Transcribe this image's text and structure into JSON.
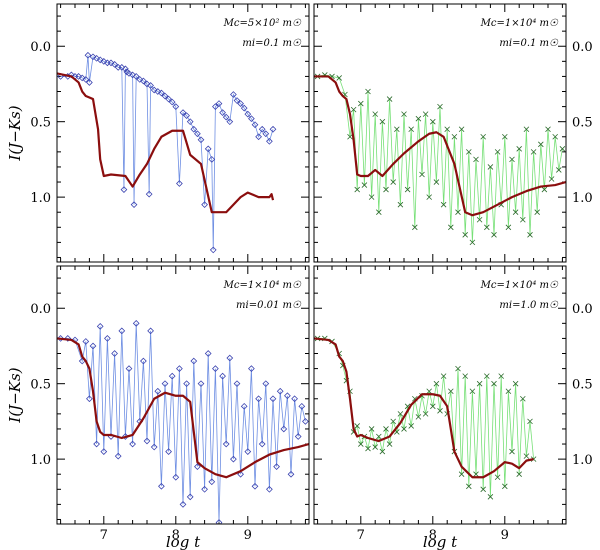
{
  "colors": {
    "model": "#8b0e0e",
    "blue_line": "#6f8fe3",
    "blue_marker": "#3a43b0",
    "green_line": "#77e077",
    "green_marker": "#2a6a2a"
  },
  "chart_data": [
    {
      "type": "line",
      "panel": "top-left",
      "marker": "diamond",
      "annotation": {
        "line1": "Mc=5×10² m☉",
        "line2": "mi=0.1 m☉"
      },
      "xlabel": "",
      "ylabel": "I(J−Ks)",
      "xlim": [
        6.35,
        9.85
      ],
      "ylim": [
        1.43,
        -0.28
      ],
      "xticks": [
        "7",
        "8",
        "9"
      ],
      "yticks": [
        "0.0",
        "0.5",
        "1.0"
      ],
      "series": [
        {
          "name": "model",
          "x": [
            6.35,
            6.55,
            6.65,
            6.7,
            6.75,
            6.8,
            6.85,
            6.92,
            6.95,
            7.0,
            7.1,
            7.3,
            7.4,
            7.5,
            7.6,
            7.7,
            7.8,
            7.95,
            8.05,
            8.1,
            8.2,
            8.35,
            8.5,
            8.7,
            8.9,
            9.0,
            9.15,
            9.3,
            9.33,
            9.35
          ],
          "y": [
            0.18,
            0.2,
            0.24,
            0.3,
            0.33,
            0.34,
            0.35,
            0.55,
            0.75,
            0.86,
            0.85,
            0.86,
            0.93,
            0.85,
            0.78,
            0.68,
            0.6,
            0.56,
            0.56,
            0.56,
            0.72,
            0.78,
            1.1,
            1.1,
            1.0,
            0.97,
            1.0,
            1.0,
            0.98,
            1.02
          ]
        },
        {
          "name": "simulation",
          "x": [
            6.4,
            6.5,
            6.55,
            6.6,
            6.65,
            6.7,
            6.75,
            6.78,
            6.8,
            6.85,
            6.9,
            6.95,
            7.0,
            7.05,
            7.1,
            7.15,
            7.2,
            7.25,
            7.28,
            7.3,
            7.32,
            7.35,
            7.4,
            7.42,
            7.45,
            7.5,
            7.55,
            7.6,
            7.63,
            7.65,
            7.7,
            7.75,
            7.8,
            7.85,
            7.9,
            7.95,
            8.0,
            8.05,
            8.1,
            8.15,
            8.2,
            8.25,
            8.3,
            8.35,
            8.4,
            8.45,
            8.5,
            8.52,
            8.55,
            8.6,
            8.65,
            8.7,
            8.75,
            8.8,
            8.85,
            8.9,
            8.95,
            9.0,
            9.05,
            9.1,
            9.15,
            9.2,
            9.25,
            9.3,
            9.35
          ],
          "y": [
            0.2,
            0.2,
            0.19,
            0.2,
            0.2,
            0.21,
            0.22,
            0.06,
            0.24,
            0.07,
            0.08,
            0.09,
            0.1,
            0.11,
            0.11,
            0.12,
            0.14,
            0.14,
            0.95,
            0.15,
            0.17,
            0.18,
            0.19,
            1.05,
            0.2,
            0.22,
            0.23,
            0.25,
            0.98,
            0.26,
            0.29,
            0.3,
            0.31,
            0.33,
            0.35,
            0.37,
            0.4,
            0.91,
            0.44,
            0.46,
            0.5,
            0.55,
            0.58,
            0.62,
            1.05,
            0.68,
            0.75,
            1.35,
            0.4,
            0.38,
            0.44,
            0.47,
            0.5,
            0.32,
            0.36,
            0.38,
            0.41,
            0.45,
            0.48,
            0.52,
            0.6,
            0.55,
            0.58,
            0.63,
            0.55
          ]
        }
      ]
    },
    {
      "type": "line",
      "panel": "top-right",
      "marker": "cross",
      "annotation": {
        "line1": "Mc=1×10⁴ m☉",
        "line2": "mi=0.1 m☉"
      },
      "xlabel": "",
      "ylabel": "",
      "xlim": [
        6.35,
        9.85
      ],
      "ylim": [
        1.43,
        -0.28
      ],
      "xticks": [
        "7",
        "8",
        "9"
      ],
      "yticks": [
        "0.0",
        "0.5",
        "1.0"
      ],
      "series": [
        {
          "name": "model",
          "x": [
            6.35,
            6.55,
            6.65,
            6.7,
            6.75,
            6.8,
            6.85,
            6.9,
            6.95,
            7.0,
            7.1,
            7.2,
            7.3,
            7.45,
            7.6,
            7.8,
            7.95,
            8.05,
            8.15,
            8.3,
            8.45,
            8.55,
            8.7,
            8.9,
            9.1,
            9.3,
            9.5,
            9.7,
            9.85
          ],
          "y": [
            0.2,
            0.2,
            0.24,
            0.3,
            0.33,
            0.35,
            0.45,
            0.62,
            0.85,
            0.86,
            0.86,
            0.82,
            0.86,
            0.78,
            0.71,
            0.63,
            0.58,
            0.57,
            0.6,
            0.78,
            1.1,
            1.12,
            1.1,
            1.05,
            1.0,
            0.96,
            0.93,
            0.92,
            0.9
          ]
        },
        {
          "name": "simulation",
          "x": [
            6.4,
            6.5,
            6.6,
            6.7,
            6.78,
            6.85,
            6.9,
            6.95,
            7.0,
            7.05,
            7.1,
            7.15,
            7.2,
            7.25,
            7.3,
            7.35,
            7.4,
            7.45,
            7.5,
            7.55,
            7.6,
            7.65,
            7.7,
            7.75,
            7.8,
            7.85,
            7.9,
            7.95,
            8.0,
            8.05,
            8.1,
            8.15,
            8.2,
            8.25,
            8.3,
            8.35,
            8.4,
            8.45,
            8.5,
            8.55,
            8.6,
            8.65,
            8.7,
            8.75,
            8.8,
            8.85,
            8.9,
            8.95,
            9.0,
            9.05,
            9.1,
            9.15,
            9.2,
            9.25,
            9.3,
            9.35,
            9.4,
            9.45,
            9.5,
            9.55,
            9.6,
            9.65,
            9.7,
            9.75,
            9.8
          ],
          "y": [
            0.2,
            0.19,
            0.2,
            0.21,
            0.32,
            0.6,
            0.42,
            0.95,
            0.38,
            0.92,
            0.3,
            1.0,
            0.45,
            1.1,
            0.5,
            0.95,
            0.35,
            0.9,
            0.55,
            1.05,
            0.45,
            0.95,
            0.55,
            1.2,
            0.48,
            0.85,
            0.45,
            1.0,
            0.5,
            0.9,
            0.4,
            1.05,
            0.55,
            1.2,
            0.6,
            1.1,
            0.55,
            1.25,
            0.7,
            1.3,
            0.75,
            1.15,
            0.6,
            1.2,
            0.8,
            1.25,
            0.7,
            1.05,
            0.6,
            1.2,
            0.75,
            1.1,
            0.68,
            1.15,
            0.55,
            1.25,
            0.7,
            1.1,
            0.65,
            0.95,
            0.55,
            0.88,
            0.6,
            0.82,
            0.68
          ]
        }
      ]
    },
    {
      "type": "line",
      "panel": "bottom-left",
      "marker": "diamond",
      "annotation": {
        "line1": "Mc=1×10⁴ m☉",
        "line2": "mi=0.01 m☉"
      },
      "xlabel": "log t",
      "ylabel": "I(J−Ks)",
      "xlim": [
        6.35,
        9.85
      ],
      "ylim": [
        1.43,
        -0.28
      ],
      "xticks": [
        "7",
        "8",
        "9"
      ],
      "yticks": [
        "0.0",
        "0.5",
        "1.0"
      ],
      "series": [
        {
          "name": "model",
          "x": [
            6.35,
            6.55,
            6.65,
            6.7,
            6.75,
            6.8,
            6.85,
            6.9,
            6.95,
            7.0,
            7.1,
            7.25,
            7.4,
            7.55,
            7.7,
            7.85,
            8.0,
            8.1,
            8.2,
            8.3,
            8.4,
            8.55,
            8.7,
            8.9,
            9.1,
            9.3,
            9.5,
            9.7,
            9.85
          ],
          "y": [
            0.2,
            0.21,
            0.24,
            0.32,
            0.35,
            0.4,
            0.55,
            0.75,
            0.82,
            0.84,
            0.84,
            0.86,
            0.84,
            0.73,
            0.6,
            0.56,
            0.58,
            0.58,
            0.62,
            1.02,
            1.06,
            1.1,
            1.12,
            1.08,
            1.02,
            0.97,
            0.94,
            0.92,
            0.9
          ]
        },
        {
          "name": "simulation",
          "x": [
            6.4,
            6.5,
            6.6,
            6.7,
            6.75,
            6.8,
            6.85,
            6.9,
            6.95,
            7.0,
            7.05,
            7.1,
            7.15,
            7.2,
            7.25,
            7.3,
            7.35,
            7.4,
            7.45,
            7.5,
            7.55,
            7.6,
            7.65,
            7.7,
            7.75,
            7.8,
            7.85,
            7.9,
            7.95,
            8.0,
            8.05,
            8.1,
            8.15,
            8.2,
            8.25,
            8.3,
            8.35,
            8.4,
            8.45,
            8.5,
            8.55,
            8.6,
            8.65,
            8.7,
            8.75,
            8.8,
            8.85,
            8.9,
            8.95,
            9.0,
            9.05,
            9.1,
            9.15,
            9.2,
            9.25,
            9.3,
            9.35,
            9.4,
            9.45,
            9.5,
            9.55,
            9.6,
            9.65,
            9.7,
            9.75,
            9.8
          ],
          "y": [
            0.2,
            0.2,
            0.21,
            0.35,
            0.22,
            0.6,
            0.25,
            0.9,
            0.12,
            0.95,
            0.2,
            0.85,
            0.3,
            0.98,
            0.15,
            0.85,
            0.4,
            0.9,
            0.1,
            0.75,
            0.35,
            0.88,
            0.15,
            0.92,
            0.55,
            1.18,
            0.5,
            0.95,
            0.45,
            1.12,
            0.4,
            1.3,
            0.5,
            1.25,
            0.35,
            1.05,
            0.5,
            1.2,
            0.3,
            1.15,
            0.4,
            1.42,
            0.45,
            0.9,
            0.33,
            1.0,
            0.5,
            1.1,
            0.65,
            0.95,
            0.4,
            1.18,
            0.6,
            0.9,
            0.5,
            1.2,
            0.6,
            1.05,
            0.55,
            0.8,
            0.58,
            1.1,
            0.6,
            0.85,
            0.65,
            0.75
          ]
        }
      ]
    },
    {
      "type": "line",
      "panel": "bottom-right",
      "marker": "cross",
      "annotation": {
        "line1": "Mc=1×10⁴ m☉",
        "line2": "mi=1.0 m☉"
      },
      "xlabel": "log t",
      "ylabel": "",
      "xlim": [
        6.35,
        9.85
      ],
      "ylim": [
        1.43,
        -0.28
      ],
      "xticks": [
        "7",
        "8",
        "9"
      ],
      "yticks": [
        "0.0",
        "0.5",
        "1.0"
      ],
      "series": [
        {
          "name": "model",
          "x": [
            6.35,
            6.55,
            6.65,
            6.7,
            6.75,
            6.8,
            6.85,
            6.9,
            6.95,
            7.0,
            7.1,
            7.25,
            7.4,
            7.55,
            7.7,
            7.85,
            8.0,
            8.1,
            8.2,
            8.3,
            8.4,
            8.55,
            8.7,
            8.85,
            9.0,
            9.1,
            9.2,
            9.3,
            9.4
          ],
          "y": [
            0.2,
            0.21,
            0.24,
            0.32,
            0.35,
            0.42,
            0.6,
            0.8,
            0.85,
            0.84,
            0.86,
            0.88,
            0.85,
            0.76,
            0.64,
            0.57,
            0.57,
            0.58,
            0.65,
            0.95,
            1.05,
            1.12,
            1.12,
            1.08,
            1.02,
            1.03,
            1.06,
            1.01,
            1.0
          ]
        },
        {
          "name": "simulation",
          "x": [
            6.4,
            6.5,
            6.6,
            6.7,
            6.75,
            6.8,
            6.85,
            6.9,
            6.95,
            7.0,
            7.05,
            7.1,
            7.15,
            7.2,
            7.25,
            7.3,
            7.35,
            7.4,
            7.45,
            7.5,
            7.55,
            7.6,
            7.65,
            7.7,
            7.75,
            7.8,
            7.85,
            7.9,
            7.95,
            8.0,
            8.05,
            8.1,
            8.15,
            8.2,
            8.25,
            8.3,
            8.35,
            8.4,
            8.45,
            8.5,
            8.55,
            8.6,
            8.65,
            8.7,
            8.75,
            8.8,
            8.85,
            8.9,
            8.95,
            9.0,
            9.05,
            9.1,
            9.15,
            9.2,
            9.25,
            9.3,
            9.35,
            9.4
          ],
          "y": [
            0.2,
            0.2,
            0.22,
            0.3,
            0.38,
            0.48,
            0.55,
            0.82,
            0.78,
            0.9,
            0.85,
            0.93,
            0.8,
            0.92,
            0.85,
            0.95,
            0.8,
            0.9,
            0.75,
            0.82,
            0.7,
            0.8,
            0.65,
            0.78,
            0.6,
            0.72,
            0.58,
            0.7,
            0.55,
            0.65,
            0.5,
            0.68,
            0.45,
            0.7,
            0.55,
            0.95,
            0.4,
            1.1,
            0.45,
            1.18,
            0.55,
            1.1,
            0.5,
            1.2,
            0.45,
            1.25,
            0.5,
            1.12,
            0.45,
            1.18,
            0.55,
            0.95,
            0.5,
            1.1,
            0.6,
            0.98,
            0.75,
            1.0
          ]
        }
      ]
    }
  ]
}
